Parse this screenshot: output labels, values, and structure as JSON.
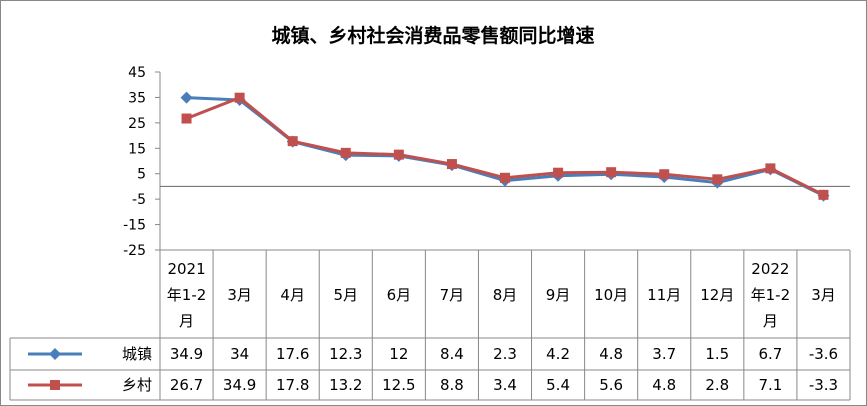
{
  "chart_data": {
    "type": "line",
    "title": "城镇、乡村社会消费品零售额同比增速",
    "ylim": [
      -25,
      45
    ],
    "y_ticks": [
      "45",
      "35",
      "25",
      "15",
      "5",
      "-5",
      "-15",
      "-25"
    ],
    "categories": [
      [
        "2021",
        "年1-2",
        "月"
      ],
      [
        "3月"
      ],
      [
        "4月"
      ],
      [
        "5月"
      ],
      [
        "6月"
      ],
      [
        "7月"
      ],
      [
        "8月"
      ],
      [
        "9月"
      ],
      [
        "10月"
      ],
      [
        "11月"
      ],
      [
        "12月"
      ],
      [
        "2022",
        "年1-2",
        "月"
      ],
      [
        "3月"
      ]
    ],
    "series": [
      {
        "name": "城镇",
        "color": "#4a7ebb",
        "marker": "diamond",
        "values": [
          34.9,
          34,
          17.6,
          12.3,
          12,
          8.4,
          2.3,
          4.2,
          4.8,
          3.7,
          1.5,
          6.7,
          -3.6
        ],
        "labels": [
          "34.9",
          "34",
          "17.6",
          "12.3",
          "12",
          "8.4",
          "2.3",
          "4.2",
          "4.8",
          "3.7",
          "1.5",
          "6.7",
          "-3.6"
        ]
      },
      {
        "name": "乡村",
        "color": "#c0504d",
        "marker": "square",
        "values": [
          26.7,
          34.9,
          17.8,
          13.2,
          12.5,
          8.8,
          3.4,
          5.4,
          5.6,
          4.8,
          2.8,
          7.1,
          -3.3
        ],
        "labels": [
          "26.7",
          "34.9",
          "17.8",
          "13.2",
          "12.5",
          "8.8",
          "3.4",
          "5.4",
          "5.6",
          "4.8",
          "2.8",
          "7.1",
          "-3.3"
        ]
      }
    ],
    "grid": false,
    "zero_line": true,
    "legend": "data-table"
  }
}
